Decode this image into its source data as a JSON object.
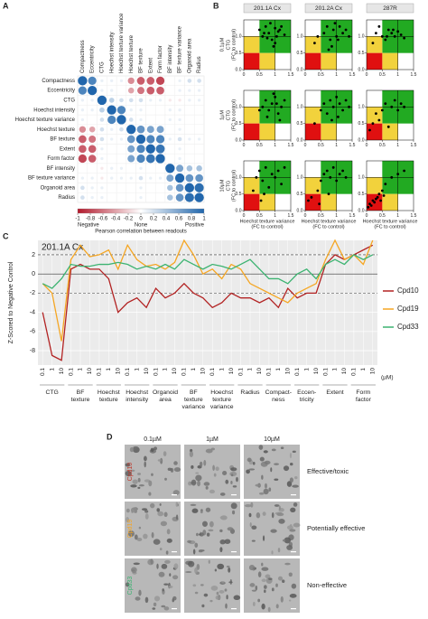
{
  "panel_labels": [
    "A",
    "B",
    "C",
    "D"
  ],
  "chart_data": [
    {
      "type": "correlation",
      "labels": [
        "Compactness",
        "Eccentricity",
        "CTG",
        "Hoechst intensity",
        "Hoechst texture variance",
        "Hoechst texture",
        "BF texture",
        "Extent",
        "Form factor",
        "BF intensity",
        "BF texture variance",
        "Organoid area",
        "Radius"
      ],
      "matrix": [
        [
          1,
          0.8,
          0.1,
          0.1,
          0.1,
          -0.5,
          -0.7,
          -0.7,
          -0.8,
          0.0,
          0.1,
          0.2,
          0.2
        ],
        [
          0.8,
          1,
          0.1,
          0.1,
          0.0,
          -0.4,
          -0.6,
          -0.7,
          -0.7,
          0.0,
          0.1,
          0.1,
          0.1
        ],
        [
          0.1,
          0.1,
          1,
          0.3,
          0.2,
          0.2,
          0.2,
          0.1,
          0.1,
          -0.1,
          -0.1,
          0.1,
          0.1
        ],
        [
          0.1,
          0.1,
          0.3,
          1,
          0.8,
          0.1,
          0.1,
          0.0,
          0.0,
          0.1,
          0.1,
          0.0,
          0.0
        ],
        [
          0.1,
          0.0,
          0.2,
          0.8,
          1,
          0.2,
          0.1,
          0.0,
          0.0,
          0.1,
          0.1,
          0.0,
          0.0
        ],
        [
          -0.5,
          -0.4,
          0.2,
          0.1,
          0.2,
          1,
          0.7,
          0.6,
          0.6,
          0.0,
          0.1,
          0.0,
          0.0
        ],
        [
          -0.7,
          -0.6,
          0.2,
          0.1,
          0.1,
          0.7,
          1,
          0.8,
          0.8,
          0.1,
          0.2,
          0.1,
          0.1
        ],
        [
          -0.7,
          -0.7,
          0.1,
          0.0,
          0.0,
          0.6,
          0.8,
          1,
          0.9,
          0.0,
          0.1,
          0.0,
          0.0
        ],
        [
          -0.8,
          -0.7,
          0.1,
          0.0,
          0.0,
          0.6,
          0.8,
          0.9,
          1,
          0.0,
          0.1,
          0.0,
          0.0
        ],
        [
          0.0,
          0.0,
          -0.1,
          0.1,
          0.1,
          0.0,
          0.1,
          0.0,
          0.0,
          1,
          0.6,
          0.4,
          0.4
        ],
        [
          0.1,
          0.1,
          -0.1,
          0.1,
          0.1,
          0.1,
          0.2,
          0.1,
          0.1,
          0.6,
          1,
          0.7,
          0.7
        ],
        [
          0.2,
          0.1,
          0.1,
          0.0,
          0.0,
          0.0,
          0.1,
          0.0,
          0.0,
          0.4,
          0.7,
          1,
          0.95
        ],
        [
          0.2,
          0.1,
          0.1,
          0.0,
          0.0,
          0.0,
          0.1,
          0.0,
          0.0,
          0.4,
          0.7,
          0.95,
          1
        ]
      ],
      "colors": {
        "negative": "#b2182b",
        "zero": "#ffffff",
        "positive": "#2166ac"
      },
      "colorbar_lim": [
        -1,
        1
      ],
      "colorbar_ticks": [
        -1,
        -0.8,
        -0.6,
        -0.4,
        -0.2,
        0,
        0.2,
        0.4,
        0.6,
        0.8,
        1
      ],
      "colorbar_labels": [
        "Negative",
        "None",
        "Positive"
      ],
      "colorbar_title": "Pearson correlation between readouts"
    },
    {
      "type": "scatter",
      "columns": [
        "201.1A Cx",
        "201.2A Cx",
        "287R"
      ],
      "rows": [
        "0.1µM",
        "1µM",
        "10µM"
      ],
      "y_label": "CTG",
      "y_sublabel": "(FC to control)",
      "x_label": "Hoechst texture variance",
      "x_sublabel": "(FC to control)",
      "xlim": [
        0,
        1.5
      ],
      "ylim": [
        0,
        1.5
      ],
      "xticks": [
        0,
        0.5,
        1,
        1.5
      ],
      "yticks": [
        {
          "value": 0,
          "label": "0.0"
        },
        {
          "value": 0.5,
          "label": "0.5"
        },
        {
          "value": 1,
          "label": "1.0"
        }
      ],
      "thresholds": [
        0.5,
        1
      ],
      "zone_colors": {
        "effective": "#22aa22",
        "partial": "#f2d23c",
        "toxic": "#e01010"
      },
      "color": "#000000",
      "panels": [
        {
          "x": [
            0.5,
            0.6,
            0.7,
            0.8,
            0.9,
            1.0,
            1.05,
            1.1,
            1.2,
            0.95,
            0.85,
            1.3,
            0.75,
            1.0,
            0.65,
            1.15
          ],
          "y": [
            1.2,
            1.0,
            1.3,
            1.1,
            0.9,
            1.25,
            1.0,
            1.15,
            1.3,
            0.7,
            1.4,
            1.05,
            0.95,
            0.8,
            1.1,
            1.2
          ]
        },
        {
          "x": [
            0.3,
            0.6,
            0.7,
            0.8,
            0.9,
            1.0,
            1.1,
            1.2,
            1.3,
            0.95,
            0.85,
            1.4,
            0.75,
            1.05,
            0.4
          ],
          "y": [
            0.8,
            1.1,
            1.3,
            0.9,
            1.2,
            1.0,
            1.3,
            1.1,
            1.2,
            1.4,
            0.7,
            1.0,
            0.6,
            0.9,
            1.0
          ]
        },
        {
          "x": [
            0.2,
            0.3,
            0.5,
            0.6,
            0.7,
            0.8,
            0.9,
            1.0,
            1.1,
            1.2,
            0.4,
            0.65,
            0.85
          ],
          "y": [
            0.8,
            1.1,
            1.0,
            0.9,
            1.2,
            1.1,
            1.0,
            1.15,
            1.05,
            0.95,
            1.3,
            1.0,
            1.2
          ]
        },
        {
          "x": [
            0.6,
            0.7,
            0.8,
            0.9,
            1.0,
            1.1,
            1.2,
            1.3,
            0.75,
            0.95,
            1.05,
            0.5,
            1.15
          ],
          "y": [
            1.0,
            1.2,
            0.9,
            1.1,
            1.3,
            0.8,
            1.0,
            1.2,
            0.7,
            1.4,
            1.1,
            0.9,
            0.6
          ]
        },
        {
          "x": [
            0.5,
            0.6,
            0.7,
            0.8,
            0.9,
            1.0,
            1.1,
            1.2,
            1.3,
            1.4,
            0.85,
            1.05,
            0.3
          ],
          "y": [
            0.9,
            1.1,
            0.8,
            1.2,
            1.0,
            1.3,
            1.1,
            0.9,
            1.2,
            1.0,
            0.6,
            0.7,
            0.5
          ]
        },
        {
          "x": [
            0.1,
            0.2,
            0.3,
            0.5,
            0.6,
            0.8,
            0.9,
            1.0,
            1.1,
            1.2,
            0.4,
            0.7
          ],
          "y": [
            0.3,
            0.5,
            0.8,
            0.9,
            1.1,
            1.0,
            1.2,
            0.9,
            1.1,
            1.0,
            0.6,
            0.4
          ]
        },
        {
          "x": [
            0.3,
            0.4,
            0.5,
            0.6,
            0.7,
            0.8,
            0.9,
            1.0,
            1.1,
            1.2,
            1.3,
            0.55,
            0.65
          ],
          "y": [
            0.6,
            1.0,
            1.2,
            0.9,
            1.3,
            0.7,
            1.1,
            1.0,
            1.2,
            0.8,
            1.3,
            0.3,
            0.5
          ]
        },
        {
          "x": [
            0.1,
            0.2,
            0.4,
            0.5,
            0.6,
            0.7,
            0.8,
            0.9,
            1.0,
            1.1,
            1.2,
            1.3,
            0.45,
            0.75
          ],
          "y": [
            0.3,
            0.4,
            0.6,
            0.9,
            1.1,
            1.2,
            1.0,
            1.3,
            0.9,
            1.1,
            1.2,
            1.0,
            0.2,
            0.5
          ]
        },
        {
          "x": [
            0.05,
            0.1,
            0.15,
            0.2,
            0.25,
            0.3,
            0.35,
            0.4,
            0.5,
            0.6,
            0.8,
            1.0,
            1.2,
            0.45,
            0.55
          ],
          "y": [
            0.1,
            0.2,
            0.15,
            0.3,
            0.25,
            0.35,
            0.4,
            0.5,
            0.6,
            0.8,
            1.0,
            1.1,
            1.2,
            0.3,
            0.45
          ]
        }
      ]
    },
    {
      "type": "line",
      "title": "201.1A Cx",
      "y_label": "Z-Scored to Negative Control",
      "x_unit": "(µM)",
      "categories": [
        "0.1",
        "1",
        "10",
        "0.1",
        "1",
        "10",
        "0.1",
        "1",
        "10",
        "0.1",
        "1",
        "10",
        "0.1",
        "1",
        "10",
        "0.1",
        "1",
        "10",
        "0.1",
        "1",
        "10",
        "0.1",
        "1",
        "10",
        "0.1",
        "1",
        "10",
        "0.1",
        "1",
        "10",
        "0.1",
        "1",
        "10",
        "0.1",
        "1",
        "10"
      ],
      "groups": [
        [
          "CTG"
        ],
        [
          "BF",
          "texture"
        ],
        [
          "Hoechst",
          "texture"
        ],
        [
          "Hoechst",
          "intensity"
        ],
        [
          "Organoid",
          "area"
        ],
        [
          "BF",
          "texture",
          "variance"
        ],
        [
          "Hoechst",
          "texture",
          "variance"
        ],
        [
          "Radius"
        ],
        [
          "Compact-",
          "ness"
        ],
        [
          "Eccen-",
          "tricity"
        ],
        [
          "Extent"
        ],
        [
          "Form",
          "factor"
        ]
      ],
      "ylim": [
        -9.5,
        3.5
      ],
      "yticks": [
        -8,
        -6,
        -4,
        -2,
        0,
        2
      ],
      "hlines": [
        {
          "value": 0,
          "style": "solid"
        },
        {
          "value": -2,
          "style": "dashed"
        },
        {
          "value": 2,
          "style": "dashed"
        }
      ],
      "grid": true,
      "series": [
        {
          "name": "Cpd10",
          "color": "#b22222",
          "values": [
            -4,
            -8.5,
            -9,
            0.5,
            1,
            0.5,
            0.5,
            -0.5,
            -4,
            -3,
            -2.5,
            -3.5,
            -1.5,
            -2.5,
            -2,
            -1,
            -2,
            -2.5,
            -3.5,
            -3,
            -2,
            -2.5,
            -2.5,
            -3,
            -2.5,
            -3.5,
            -1.5,
            -2.5,
            -2,
            -2,
            1,
            2,
            1.5,
            2,
            2.5,
            3
          ]
        },
        {
          "name": "Cpd19",
          "color": "#f5a623",
          "values": [
            -1,
            -2,
            -7,
            1.5,
            3,
            1.8,
            2,
            2.5,
            0.5,
            3,
            1.5,
            0.8,
            1,
            0.5,
            1.2,
            3.5,
            2,
            0,
            0.5,
            -0.5,
            1,
            0.5,
            -1,
            -1.5,
            -2,
            -2.5,
            -3,
            -2,
            -1.5,
            -1,
            1.5,
            3.5,
            1.5,
            2,
            1,
            3.5
          ]
        },
        {
          "name": "Cpd33",
          "color": "#3cb371",
          "values": [
            -1,
            -1.5,
            -0.5,
            1,
            0.8,
            0.8,
            1,
            1,
            1.2,
            1,
            0.5,
            0.8,
            0.5,
            1,
            0.5,
            1.5,
            1,
            0.5,
            1,
            0.8,
            0.5,
            1,
            1.5,
            0.5,
            -0.5,
            -0.5,
            -1,
            0,
            0.5,
            -0.5,
            1,
            1.5,
            1,
            2,
            1.5,
            2
          ]
        }
      ]
    }
  ],
  "image_panel": {
    "columns": [
      "0.1µM",
      "1µM",
      "10µM"
    ],
    "rows": [
      {
        "label": "Cpd10",
        "color": "#c0392b",
        "outcome": "Effective/toxic"
      },
      {
        "label": "Cpd19",
        "color": "#f5a623",
        "outcome": "Potentially effective"
      },
      {
        "label": "Cpd33",
        "color": "#3cb371",
        "outcome": "Non-effective"
      }
    ]
  }
}
